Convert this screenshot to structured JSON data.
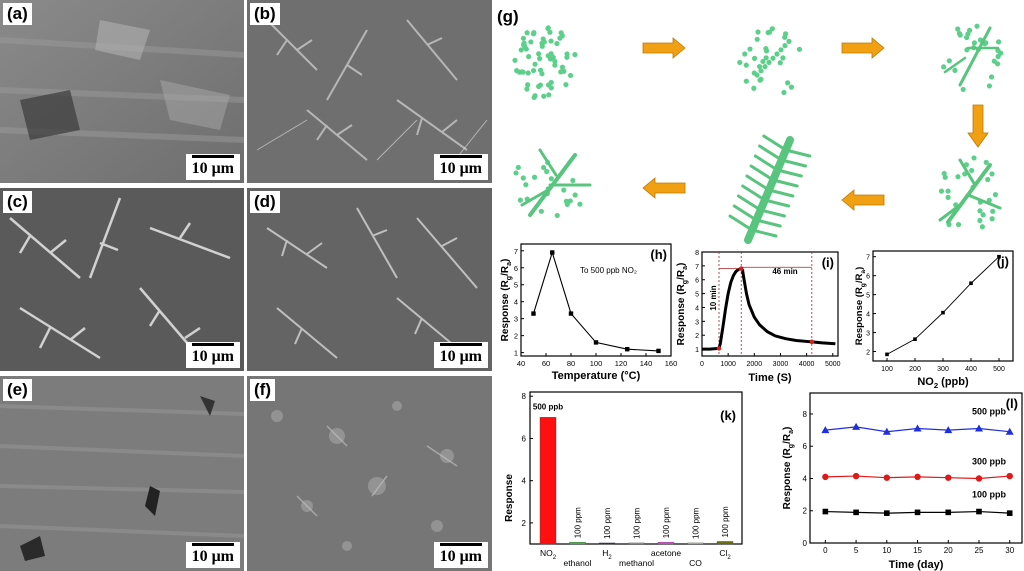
{
  "sem": {
    "panels": [
      {
        "label": "(a)",
        "scale": "10 μm"
      },
      {
        "label": "(b)",
        "scale": "10 μm"
      },
      {
        "label": "(c)",
        "scale": "10 μm"
      },
      {
        "label": "(d)",
        "scale": "10 μm"
      },
      {
        "label": "(e)",
        "scale": "10 μm"
      },
      {
        "label": "(f)",
        "scale": "10 μm"
      }
    ]
  },
  "schematic": {
    "label": "(g)",
    "colors": {
      "dot": "#5cd08a",
      "stem": "#58c47e",
      "arrow": "#f0a012"
    }
  },
  "chart_data": [
    {
      "id": "h",
      "label": "(h)",
      "type": "line",
      "xlabel": "Temperature (°C)",
      "ylabel": "Response (Rg/Ra)",
      "annotation": "To 500 ppb NO₂",
      "x": [
        50,
        65,
        80,
        100,
        125,
        150
      ],
      "y": [
        3.3,
        6.9,
        3.3,
        1.6,
        1.2,
        1.1
      ],
      "xlim": [
        40,
        160
      ],
      "ylim": [
        0.8,
        7.4
      ],
      "xticks": [
        40,
        60,
        80,
        100,
        120,
        140,
        160
      ],
      "yticks": [
        1,
        2,
        3,
        4,
        5,
        6,
        7
      ],
      "color": "#000000"
    },
    {
      "id": "i",
      "label": "(i)",
      "type": "line",
      "xlabel": "Time (S)",
      "ylabel": "Response (Rg/Ra)",
      "x": [
        0,
        300,
        650,
        700,
        800,
        900,
        1000,
        1100,
        1200,
        1300,
        1400,
        1500,
        1550,
        1600,
        1700,
        1800,
        2000,
        2200,
        2500,
        2800,
        3200,
        3600,
        4000,
        4200,
        4600,
        5100
      ],
      "y": [
        1.0,
        1.0,
        1.05,
        1.4,
        2.6,
        3.9,
        5.0,
        5.8,
        6.3,
        6.6,
        6.75,
        6.8,
        6.7,
        6.1,
        5.0,
        4.2,
        3.3,
        2.75,
        2.25,
        1.95,
        1.75,
        1.62,
        1.55,
        1.52,
        1.45,
        1.38
      ],
      "xlim": [
        0,
        5200
      ],
      "ylim": [
        0.5,
        8
      ],
      "xticks": [
        0,
        1000,
        2000,
        3000,
        4000,
        5000
      ],
      "yticks": [
        1,
        2,
        3,
        4,
        5,
        6,
        7,
        8
      ],
      "markers": [
        [
          650,
          1.05
        ],
        [
          1500,
          6.8
        ],
        [
          4200,
          1.52
        ]
      ],
      "annotations": [
        "10 min",
        "46 min"
      ],
      "color": "#000000",
      "marker_color": "#d42020"
    },
    {
      "id": "j",
      "label": "(j)",
      "type": "line",
      "xlabel": "NO₂ (ppb)",
      "ylabel": "Response (Rg/Ra)",
      "x": [
        100,
        200,
        300,
        400,
        500
      ],
      "y": [
        1.85,
        2.65,
        4.05,
        5.6,
        7.0
      ],
      "xlim": [
        50,
        550
      ],
      "ylim": [
        1.5,
        7.3
      ],
      "xticks": [
        100,
        200,
        300,
        400,
        500
      ],
      "yticks": [
        2,
        3,
        4,
        5,
        6,
        7
      ],
      "color": "#000000"
    },
    {
      "id": "k",
      "label": "(k)",
      "type": "bar",
      "ylabel": "Response",
      "categories": [
        "NO₂",
        "ethanol",
        "H₂",
        "methanol",
        "acetone",
        "CO",
        "Cl₂"
      ],
      "values": [
        7.0,
        1.08,
        1.05,
        1.05,
        1.08,
        1.05,
        1.12
      ],
      "bar_labels": [
        "500 ppb",
        "100 ppm",
        "100 ppm",
        "100 ppm",
        "100 ppm",
        "100 ppm",
        "100 ppm"
      ],
      "colors": [
        "#ff1010",
        "#40d040",
        "#1020c0",
        "#30e0f0",
        "#ff40ff",
        "#f0f020",
        "#707010"
      ],
      "ylim": [
        1,
        8.2
      ],
      "yticks": [
        2,
        4,
        6,
        8
      ]
    },
    {
      "id": "l",
      "label": "(l)",
      "type": "line",
      "xlabel": "Time (day)",
      "ylabel": "Response (Rg/Ra)",
      "x": [
        0,
        5,
        10,
        15,
        20,
        25,
        30
      ],
      "series": [
        {
          "name": "500 ppb",
          "values": [
            7.0,
            7.2,
            6.9,
            7.1,
            7.0,
            7.1,
            6.9
          ],
          "color": "#1f2fe0",
          "marker": "triangle"
        },
        {
          "name": "300 ppb",
          "values": [
            4.1,
            4.15,
            4.05,
            4.1,
            4.05,
            4.0,
            4.15
          ],
          "color": "#e01818",
          "marker": "circle"
        },
        {
          "name": "100 ppb",
          "values": [
            1.95,
            1.9,
            1.85,
            1.9,
            1.9,
            1.95,
            1.85
          ],
          "color": "#000000",
          "marker": "square"
        }
      ],
      "xlim": [
        -2.5,
        32
      ],
      "ylim": [
        0,
        9.3
      ],
      "xticks": [
        0,
        5,
        10,
        15,
        20,
        25,
        30
      ],
      "yticks": [
        0,
        2,
        4,
        6,
        8
      ]
    }
  ]
}
